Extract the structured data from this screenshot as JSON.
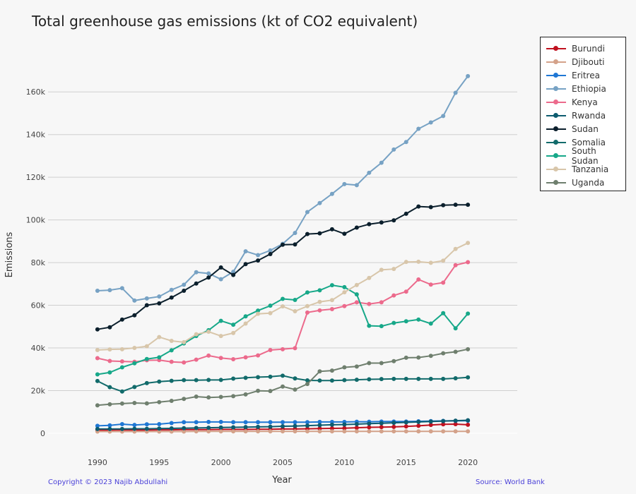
{
  "chart_data": {
    "type": "line",
    "title": "Total greenhouse gas emissions (kt of CO2 equivalent)",
    "xlabel": "Year",
    "ylabel": "Emissions",
    "xlim": [
      1986,
      2024
    ],
    "ylim": [
      -2000,
      170000
    ],
    "xticks": [
      1990,
      1995,
      2000,
      2005,
      2010,
      2015,
      2020
    ],
    "yticks": [
      0,
      20000,
      40000,
      60000,
      80000,
      100000,
      120000,
      140000,
      160000
    ],
    "ytick_labels": [
      "0",
      "20k",
      "40k",
      "60k",
      "80k",
      "100k",
      "120k",
      "140k",
      "160k"
    ],
    "grid": true,
    "legend_position": "top-right",
    "x": [
      1990,
      1991,
      1992,
      1993,
      1994,
      1995,
      1996,
      1997,
      1998,
      1999,
      2000,
      2001,
      2002,
      2003,
      2004,
      2005,
      2006,
      2007,
      2008,
      2009,
      2010,
      2011,
      2012,
      2013,
      2014,
      2015,
      2016,
      2017,
      2018,
      2019,
      2020
    ],
    "series": [
      {
        "name": "Burundi",
        "color": "#c0111f",
        "values": [
          1500,
          1500,
          1600,
          1500,
          1500,
          1600,
          1600,
          1700,
          1700,
          1700,
          1800,
          1800,
          1800,
          1900,
          1900,
          2000,
          2000,
          2100,
          2200,
          2300,
          2400,
          2600,
          2800,
          2900,
          3000,
          3200,
          3500,
          3900,
          4200,
          4300,
          4000
        ]
      },
      {
        "name": "Djibouti",
        "color": "#d4a28a",
        "values": [
          800,
          800,
          800,
          800,
          800,
          800,
          800,
          800,
          900,
          900,
          900,
          900,
          900,
          900,
          900,
          900,
          900,
          900,
          900,
          900,
          900,
          900,
          900,
          900,
          900,
          900,
          900,
          900,
          900,
          900,
          900
        ]
      },
      {
        "name": "Eritrea",
        "color": "#1f77d4",
        "values": [
          3500,
          3700,
          4300,
          3900,
          4200,
          4300,
          4800,
          5200,
          5200,
          5300,
          5300,
          5200,
          5200,
          5200,
          5200,
          5200,
          5200,
          5200,
          5300,
          5300,
          5300,
          5400,
          5400,
          5500,
          5500,
          5500,
          5600,
          5700,
          5800,
          5800,
          5900
        ]
      },
      {
        "name": "Ethiopia",
        "color": "#77a2c4",
        "values": [
          66800,
          67100,
          68000,
          62200,
          63200,
          64100,
          67200,
          69600,
          75500,
          74900,
          72200,
          75700,
          85300,
          83500,
          85700,
          88800,
          93900,
          103700,
          107900,
          112200,
          116800,
          116300,
          122100,
          126800,
          133000,
          136500,
          142700,
          145700,
          148700,
          159600,
          167400
        ]
      },
      {
        "name": "Kenya",
        "color": "#ec6a8c",
        "values": [
          35200,
          33900,
          33700,
          33500,
          34200,
          34300,
          33500,
          33200,
          34500,
          36400,
          35300,
          34700,
          35600,
          36500,
          39000,
          39400,
          39900,
          56600,
          57600,
          58200,
          59600,
          61400,
          60600,
          61400,
          64600,
          66400,
          72100,
          69700,
          70600,
          78800,
          80200
        ]
      },
      {
        "name": "Rwanda",
        "color": "#0d5c6f",
        "values": [
          2000,
          2000,
          2000,
          2100,
          2100,
          2200,
          2300,
          2400,
          2500,
          2600,
          2700,
          2800,
          2900,
          3000,
          3100,
          3300,
          3400,
          3600,
          3800,
          4000,
          4100,
          4300,
          4500,
          4700,
          4900,
          5100,
          5300,
          5500,
          5700,
          5900,
          6100
        ]
      },
      {
        "name": "Sudan",
        "color": "#0b1f2c",
        "values": [
          48700,
          49700,
          53300,
          55300,
          60000,
          60900,
          63600,
          66800,
          70200,
          73000,
          77700,
          74200,
          79300,
          81000,
          84000,
          88400,
          88500,
          93400,
          93700,
          95600,
          93500,
          96400,
          98000,
          98800,
          99800,
          102900,
          106300,
          106000,
          106900,
          107100,
          107100
        ]
      },
      {
        "name": "Somalia",
        "color": "#126b6b",
        "values": [
          24500,
          21600,
          19600,
          21700,
          23500,
          24200,
          24600,
          24900,
          24900,
          25000,
          25000,
          25600,
          26000,
          26300,
          26500,
          27000,
          25700,
          24800,
          24700,
          24700,
          24900,
          25100,
          25300,
          25400,
          25500,
          25500,
          25500,
          25500,
          25500,
          25800,
          26200
        ]
      },
      {
        "name": "South Sudan",
        "color": "#17a889",
        "values": [
          27600,
          28500,
          30900,
          32800,
          34800,
          35600,
          38900,
          42100,
          45600,
          48300,
          52700,
          50900,
          54800,
          57500,
          59800,
          63000,
          62500,
          66000,
          67000,
          69400,
          68500,
          65100,
          50400,
          50200,
          51700,
          52500,
          53300,
          51400,
          56300,
          49200,
          56100
        ]
      },
      {
        "name": "Tanzania",
        "color": "#d8c6aa",
        "values": [
          39000,
          39300,
          39400,
          40000,
          40800,
          45100,
          43300,
          42700,
          46400,
          47600,
          45600,
          47000,
          51400,
          56000,
          56300,
          59500,
          57200,
          59600,
          61600,
          62400,
          66100,
          69500,
          72800,
          76600,
          77000,
          80300,
          80400,
          79900,
          80900,
          86400,
          89200
        ]
      },
      {
        "name": "Uganda",
        "color": "#6f7f6e",
        "values": [
          13100,
          13600,
          13900,
          14200,
          14000,
          14600,
          15200,
          16100,
          17200,
          16800,
          17000,
          17400,
          18200,
          19900,
          19800,
          21900,
          20500,
          23100,
          29000,
          29400,
          30900,
          31300,
          32900,
          32900,
          33800,
          35400,
          35500,
          36300,
          37500,
          38200,
          39400
        ]
      }
    ]
  },
  "footer": {
    "copyright": "Copyright © 2023 Najib Abdullahi",
    "source": "Source: World Bank"
  }
}
